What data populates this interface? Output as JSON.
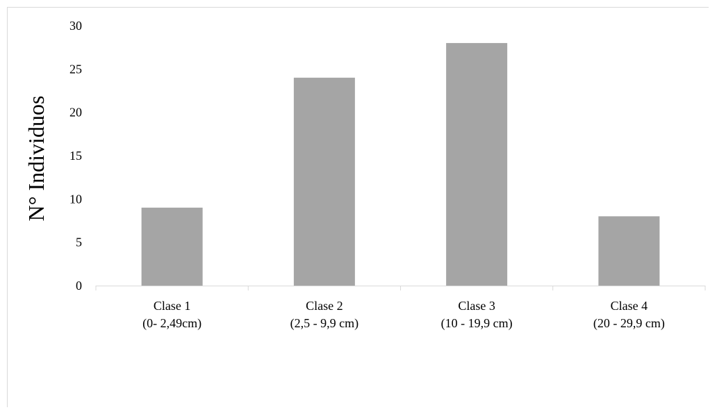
{
  "chart_data": {
    "type": "bar",
    "categories": [
      [
        "Clase 1",
        "(0- 2,49cm)"
      ],
      [
        "Clase 2",
        "(2,5 - 9,9 cm)"
      ],
      [
        "Clase 3",
        "(10 - 19,9 cm)"
      ],
      [
        "Clase 4",
        "(20 - 29,9 cm)"
      ]
    ],
    "values": [
      9,
      24,
      28,
      8
    ],
    "title": "",
    "xlabel": "",
    "ylabel": "N° Individuos",
    "ylim": [
      0,
      30
    ],
    "yticks": [
      0,
      5,
      10,
      15,
      20,
      25,
      30
    ],
    "grid": false,
    "bar_color": "#a5a5a5",
    "axis_color": "#d9d9d9"
  }
}
